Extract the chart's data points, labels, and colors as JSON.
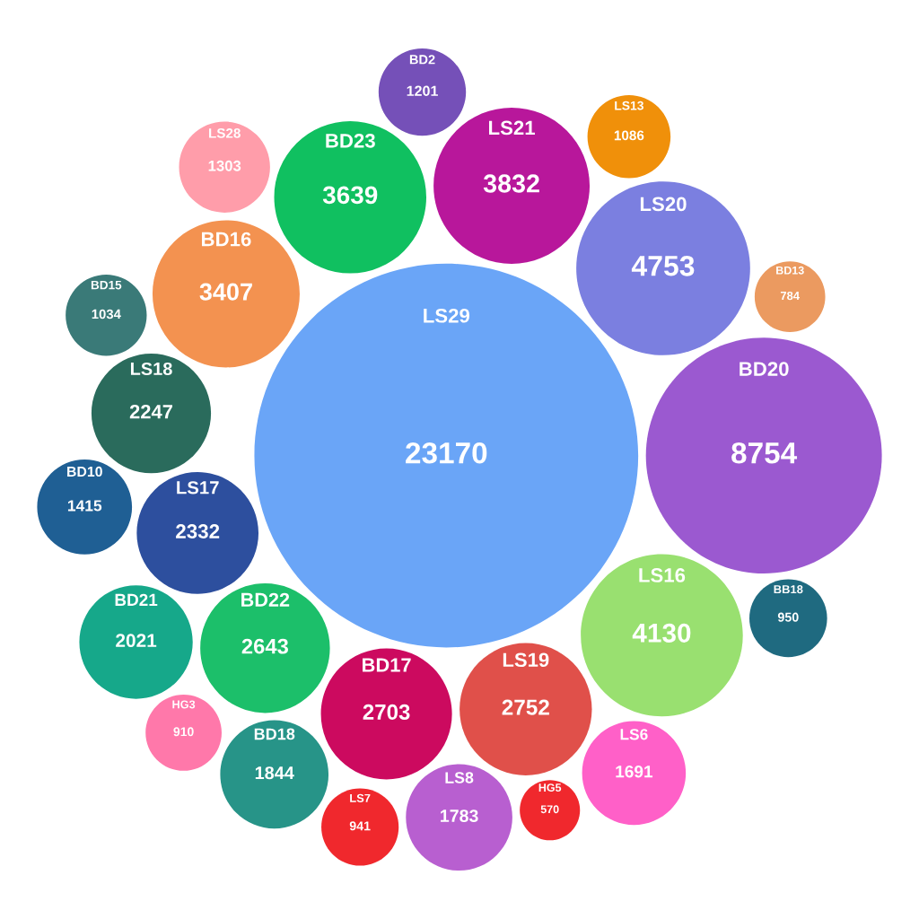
{
  "chart_data": {
    "type": "other",
    "data_labels": true,
    "categories": [
      "LS29",
      "BD20",
      "LS20",
      "LS16",
      "LS21",
      "BD23",
      "BD16",
      "LS19",
      "BD17",
      "BD22",
      "LS17",
      "LS18",
      "BD21",
      "BD18",
      "LS8",
      "LS6",
      "BD10",
      "LS28",
      "BD2",
      "LS13",
      "BD15",
      "BB18",
      "LS7",
      "HG3",
      "BD13",
      "HG5"
    ],
    "values": [
      23170,
      8754,
      4753,
      4130,
      3832,
      3639,
      3407,
      2752,
      2703,
      2643,
      2332,
      2247,
      2021,
      1844,
      1783,
      1691,
      1415,
      1303,
      1201,
      1086,
      1034,
      950,
      941,
      910,
      784,
      570
    ],
    "colors": [
      "#6aa5f7",
      "#9b59d0",
      "#7b7fe0",
      "#99e070",
      "#b8179b",
      "#10c060",
      "#f39250",
      "#e0504a",
      "#cc0a5f",
      "#1cbf6a",
      "#2d4f9e",
      "#2a6b5c",
      "#16a88a",
      "#279488",
      "#b85fd0",
      "#ff60c8",
      "#1f5f94",
      "#ff9daa",
      "#7550b8",
      "#f0900a",
      "#3a7a78",
      "#1f6a80",
      "#f0282d",
      "#ff78aa",
      "#eb9a60",
      "#f0282d"
    ]
  }
}
